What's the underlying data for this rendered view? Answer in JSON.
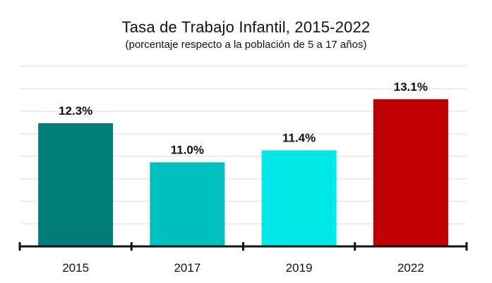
{
  "chart_data": {
    "type": "bar",
    "title": "Tasa de Trabajo Infantil, 2015-2022",
    "subtitle": "(porcentaje respecto a la población de 5 a 17 años)",
    "categories": [
      "2015",
      "2017",
      "2019",
      "2022"
    ],
    "values": [
      12.3,
      11.0,
      11.4,
      13.1
    ],
    "value_labels": [
      "12.3%",
      "11.0%",
      "11.4%",
      "13.1%"
    ],
    "colors": [
      "#007b7b",
      "#00bfbf",
      "#00e8e8",
      "#c00000"
    ],
    "xlabel": "",
    "ylabel": "",
    "ylim": [
      8.2,
      14.2
    ],
    "grid": true
  }
}
